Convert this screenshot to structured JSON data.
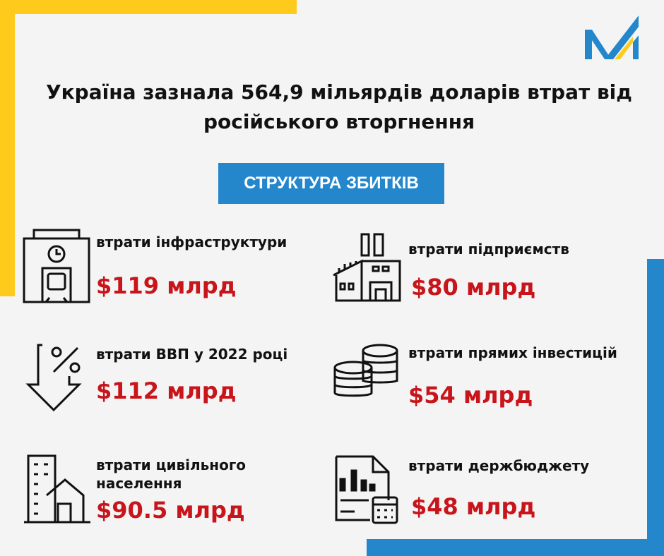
{
  "title": "Україна зазнала 564,9 мільярдів доларів втрат від російського вторгнення",
  "badge": "СТРУКТУРА ЗБИТКІВ",
  "colors": {
    "yellow": "#fecb1c",
    "blue": "#2487cc",
    "red": "#c8151b",
    "background": "#f4f4f4"
  },
  "items": [
    {
      "label": "втрати інфраструктури",
      "value": "$119 млрд",
      "icon": "train-station-icon"
    },
    {
      "label": "втрати підприємств",
      "value": "$80 млрд",
      "icon": "factory-icon"
    },
    {
      "label": "втрати ВВП у 2022 році",
      "value": "$112 млрд",
      "icon": "percent-down-arrow-icon"
    },
    {
      "label": "втрати прямих інвестицій",
      "value": "$54 млрд",
      "icon": "coins-icon"
    },
    {
      "label": "втрати цивільного населення",
      "value": "$90.5 млрд",
      "icon": "buildings-icon"
    },
    {
      "label": "втрати держбюджету",
      "value": "$48 млрд",
      "icon": "budget-report-icon"
    }
  ]
}
